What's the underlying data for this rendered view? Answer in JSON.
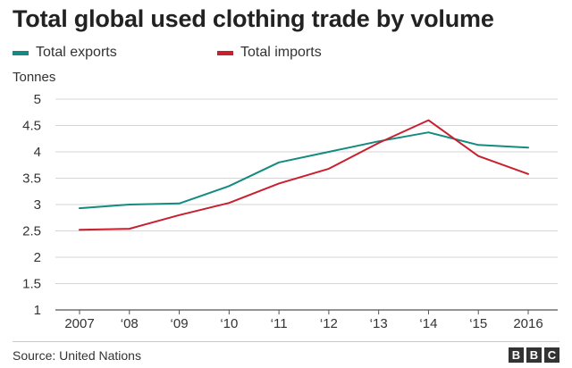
{
  "title": "Total global used clothing trade by volume",
  "unit_label": "Tonnes",
  "source": "Source: United Nations",
  "logo_letters": [
    "B",
    "B",
    "C"
  ],
  "chart_data": {
    "type": "line",
    "title": "Total global used clothing trade by volume",
    "ylabel": "Tonnes",
    "xlabel": "",
    "x": [
      "2007",
      "‘08",
      "‘09",
      "‘10",
      "‘11",
      "‘12",
      "‘13",
      "‘14",
      "‘15",
      "2016"
    ],
    "ylim": [
      1,
      5
    ],
    "yticks": [
      1,
      1.5,
      2,
      2.5,
      3,
      3.5,
      4,
      4.5,
      5
    ],
    "ytick_labels": [
      "1",
      "1.5",
      "2",
      "2.5",
      "3",
      "3.5",
      "4",
      "4.5",
      "5"
    ],
    "grid": "horizontal",
    "legend_position": "top-left",
    "series": [
      {
        "name": "Total exports",
        "color": "#148a80",
        "values": [
          2.93,
          3.0,
          3.02,
          3.35,
          3.8,
          4.0,
          4.2,
          4.37,
          4.13,
          4.08
        ]
      },
      {
        "name": "Total imports",
        "color": "#c8202f",
        "values": [
          2.52,
          2.54,
          2.8,
          3.03,
          3.4,
          3.68,
          4.17,
          4.6,
          3.92,
          3.58
        ]
      }
    ]
  }
}
